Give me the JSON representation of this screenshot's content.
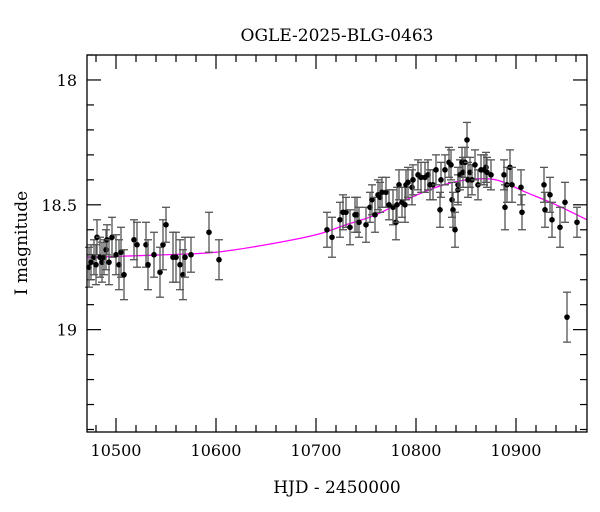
{
  "chart_data": {
    "type": "scatter",
    "title": "OGLE-2025-BLG-0463",
    "xlabel": "HJD - 2450000",
    "ylabel": "I magnitude",
    "xlim": [
      10471,
      10971
    ],
    "ylim": [
      19.41,
      17.9
    ],
    "y_inverted": true,
    "xticks": [
      10500,
      10600,
      10700,
      10800,
      10900
    ],
    "yticks": [
      18,
      18.5,
      19
    ],
    "ytick_labels": [
      "18",
      "18.5",
      "19"
    ],
    "grid": false,
    "colors": {
      "points": "#000000",
      "errorbars": "#808080",
      "model": "#ff00ff"
    },
    "points": {
      "x": [
        10473,
        10475,
        10478,
        10480,
        10481,
        10484,
        10486,
        10488,
        10490,
        10491,
        10493,
        10496,
        10500,
        10503,
        10505,
        10508,
        10518,
        10521,
        10530,
        10532,
        10538,
        10544,
        10547,
        10550,
        10557,
        10560,
        10564,
        10567,
        10569,
        10575,
        10593,
        10603,
        10711,
        10716,
        10724,
        10727,
        10730,
        10734,
        10739,
        10741,
        10743,
        10750,
        10754,
        10756,
        10759,
        10762,
        10764,
        10766,
        10770,
        10773,
        10777,
        10780,
        10781,
        10783,
        10786,
        10789,
        10790,
        10792,
        10796,
        10797,
        10802,
        10805,
        10809,
        10812,
        10814,
        10817,
        10820,
        10824,
        10825,
        10829,
        10833,
        10835,
        10836,
        10837,
        10839,
        10842,
        10842,
        10844,
        10846,
        10847,
        10849,
        10851,
        10852,
        10854,
        10856,
        10859,
        10862,
        10865,
        10868,
        10870,
        10871,
        10875,
        10888,
        10889,
        10891,
        10894,
        10896,
        10905,
        10906,
        10928,
        10929,
        10934,
        10936,
        10944,
        10949,
        10951,
        10961
      ],
      "y": [
        18.75,
        18.73,
        18.71,
        18.74,
        18.63,
        18.71,
        18.73,
        18.71,
        18.68,
        18.64,
        18.73,
        18.63,
        18.7,
        18.74,
        18.69,
        18.78,
        18.64,
        18.66,
        18.66,
        18.74,
        18.7,
        18.77,
        18.66,
        18.58,
        18.71,
        18.71,
        18.74,
        18.78,
        18.71,
        18.7,
        18.61,
        18.72,
        18.6,
        18.63,
        18.56,
        18.53,
        18.53,
        18.59,
        18.54,
        18.54,
        18.57,
        18.58,
        18.51,
        18.48,
        18.54,
        18.46,
        18.47,
        18.45,
        18.45,
        18.5,
        18.51,
        18.57,
        18.5,
        18.42,
        18.49,
        18.5,
        18.42,
        18.41,
        18.43,
        18.4,
        18.38,
        18.39,
        18.39,
        18.38,
        18.42,
        18.42,
        18.36,
        18.52,
        18.4,
        18.36,
        18.33,
        18.34,
        18.48,
        18.52,
        18.6,
        18.42,
        18.44,
        18.38,
        18.33,
        18.37,
        18.33,
        18.24,
        18.4,
        18.37,
        18.4,
        18.34,
        18.42,
        18.36,
        18.36,
        18.35,
        18.37,
        18.38,
        18.38,
        18.51,
        18.42,
        18.35,
        18.42,
        18.43,
        18.53,
        18.42,
        18.52,
        18.46,
        18.56,
        18.59,
        18.49,
        18.95,
        18.57
      ],
      "err": [
        0.08,
        0.07,
        0.07,
        0.08,
        0.07,
        0.08,
        0.08,
        0.07,
        0.08,
        0.06,
        0.09,
        0.08,
        0.08,
        0.1,
        0.1,
        0.1,
        0.08,
        0.09,
        0.09,
        0.1,
        0.09,
        0.1,
        0.1,
        0.07,
        0.1,
        0.1,
        0.1,
        0.1,
        0.08,
        0.07,
        0.08,
        0.08,
        0.07,
        0.08,
        0.07,
        0.07,
        0.06,
        0.07,
        0.07,
        0.07,
        0.06,
        0.07,
        0.06,
        0.06,
        0.07,
        0.06,
        0.06,
        0.06,
        0.06,
        0.06,
        0.07,
        0.07,
        0.07,
        0.06,
        0.06,
        0.07,
        0.06,
        0.06,
        0.07,
        0.06,
        0.06,
        0.06,
        0.06,
        0.06,
        0.06,
        0.06,
        0.06,
        0.07,
        0.07,
        0.06,
        0.06,
        0.06,
        0.07,
        0.07,
        0.07,
        0.07,
        0.06,
        0.06,
        0.06,
        0.06,
        0.06,
        0.07,
        0.07,
        0.06,
        0.06,
        0.06,
        0.06,
        0.06,
        0.06,
        0.06,
        0.06,
        0.06,
        0.06,
        0.09,
        0.07,
        0.07,
        0.07,
        0.07,
        0.07,
        0.07,
        0.07,
        0.07,
        0.07,
        0.08,
        0.08,
        0.1,
        0.06
      ]
    },
    "model": {
      "x": [
        10471,
        10550,
        10600,
        10650,
        10700,
        10730,
        10760,
        10790,
        10820,
        10850,
        10880,
        10910,
        10940,
        10971
      ],
      "y": [
        18.71,
        18.7,
        18.69,
        18.66,
        18.62,
        18.58,
        18.54,
        18.48,
        18.43,
        18.4,
        18.4,
        18.45,
        18.5,
        18.56
      ]
    }
  }
}
